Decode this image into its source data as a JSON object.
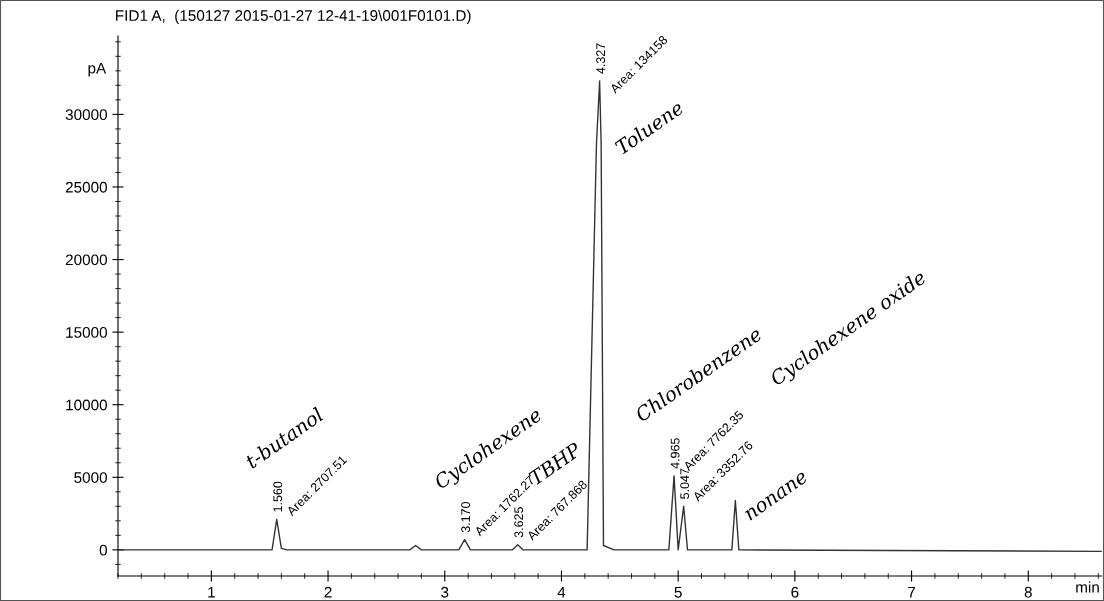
{
  "chart_data": {
    "type": "line",
    "title": "FID1 A,  (150127 2015-01-27 12-41-19\\001F0101.D)",
    "xlabel": "min",
    "ylabel": "pA",
    "series": [
      {
        "color": "#333333",
        "x": [
          0.2,
          1.52,
          1.56,
          1.6,
          1.65,
          2.7,
          2.75,
          2.8,
          3.12,
          3.17,
          3.22,
          3.58,
          3.625,
          3.67,
          4.22,
          4.3,
          4.327,
          4.34,
          4.36,
          4.45,
          4.92,
          4.965,
          5.0,
          5.047,
          5.08,
          5.46,
          5.49,
          5.52,
          8.63
        ],
        "values": [
          0,
          0,
          2100,
          100,
          0,
          0,
          300,
          0,
          0,
          700,
          0,
          0,
          350,
          0,
          0,
          28000,
          32300,
          28000,
          300,
          0,
          0,
          5100,
          0,
          3000,
          0,
          0,
          3400,
          0,
          -100
        ]
      }
    ],
    "annotations": [
      "t-butanol",
      {
        "text": "1.560",
        "x": 1.56,
        "y": 2100
      },
      {
        "text": "Area: 2707.51",
        "x": 1.6,
        "y": 1900
      },
      "Cyclohexene",
      {
        "text": "3.170",
        "x": 3.17,
        "y": 700
      },
      {
        "text": "Area: 1762.27",
        "x": 3.21,
        "y": 500
      },
      "TBHP",
      {
        "text": "3.625",
        "x": 3.625,
        "y": 350
      },
      {
        "text": "Area: 767.868",
        "x": 3.66,
        "y": 200
      },
      "Toluene",
      {
        "text": "4.327",
        "x": 4.327,
        "y": 32300
      },
      {
        "text": "Area: 134158",
        "x": 4.37,
        "y": 31000
      },
      "Chlorobenzene",
      {
        "text": "4.965",
        "x": 4.965,
        "y": 5100
      },
      {
        "text": "Area: 7762.35",
        "x": 5.0,
        "y": 5000
      },
      "Cyclohexene oxide",
      {
        "text": "5.047",
        "x": 5.047,
        "y": 3000
      },
      {
        "text": "Area: 3352.76",
        "x": 5.08,
        "y": 2900
      },
      "nonane"
    ],
    "xlim": [
      0.2,
      8.63
    ],
    "ylim": [
      -1800,
      35400
    ],
    "xticks": [
      1,
      2,
      3,
      4,
      5,
      6,
      7,
      8
    ],
    "yticks": [
      0,
      5000,
      10000,
      15000,
      20000,
      25000,
      30000
    ],
    "grid": false,
    "legend": false,
    "marker": "none",
    "line_style": "solid"
  }
}
